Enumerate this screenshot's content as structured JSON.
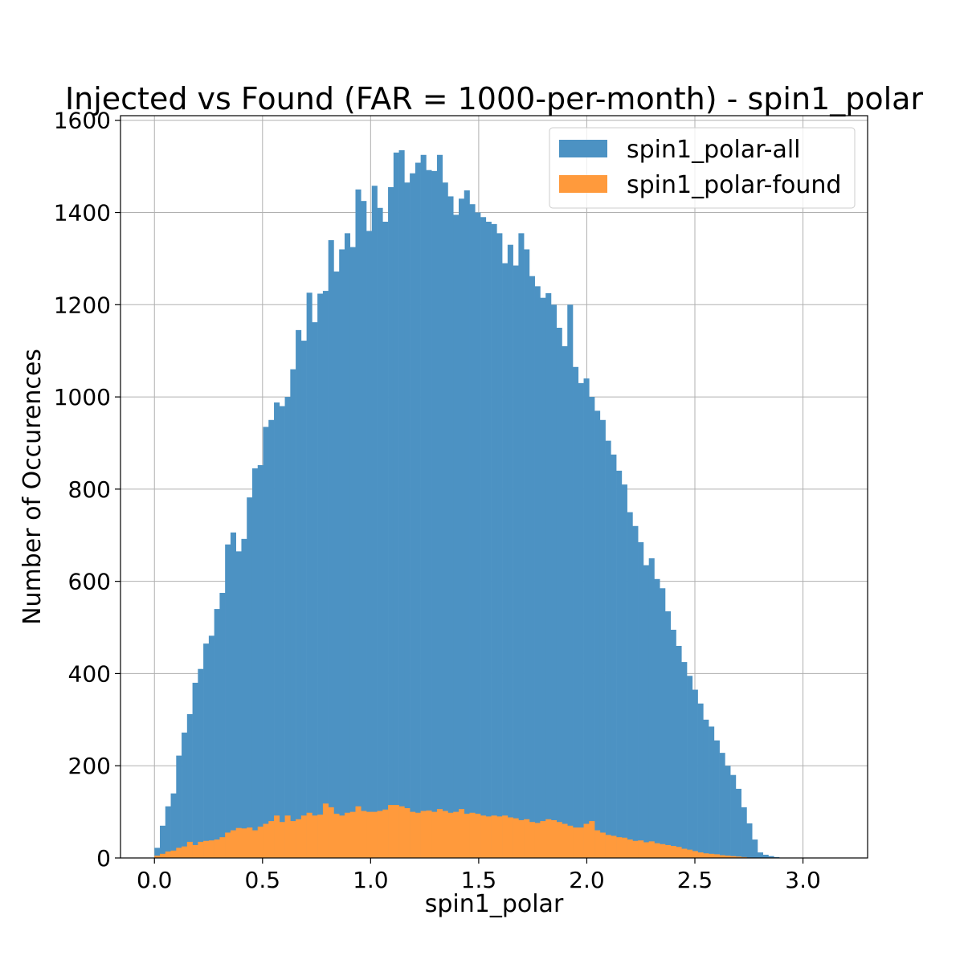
{
  "chart_data": {
    "type": "bar",
    "title": "Injected vs Found (FAR = 1000-per-month) - spin1_polar",
    "xlabel": "spin1_polar",
    "ylabel": "Number of Occurences",
    "xlim": [
      -0.157,
      3.299
    ],
    "ylim": [
      0,
      1610
    ],
    "xticks": [
      0.0,
      0.5,
      1.0,
      1.5,
      2.0,
      2.5,
      3.0
    ],
    "xtick_labels": [
      "0.0",
      "0.5",
      "1.0",
      "1.5",
      "2.0",
      "2.5",
      "3.0"
    ],
    "yticks": [
      0,
      200,
      400,
      600,
      800,
      1000,
      1200,
      1400,
      1600
    ],
    "ytick_labels": [
      "0",
      "200",
      "400",
      "600",
      "800",
      "1000",
      "1200",
      "1400",
      "1600"
    ],
    "grid": true,
    "legend_position": "top-right",
    "bins": {
      "start": 0.0,
      "end": 3.1416,
      "count": 125
    },
    "series": [
      {
        "name": "spin1_polar-all",
        "color": "#4c92c3",
        "values": [
          22,
          70,
          112,
          140,
          222,
          272,
          312,
          380,
          410,
          465,
          482,
          540,
          575,
          680,
          706,
          665,
          692,
          782,
          845,
          852,
          935,
          950,
          988,
          980,
          1000,
          1060,
          1145,
          1122,
          1226,
          1162,
          1224,
          1230,
          1340,
          1272,
          1320,
          1355,
          1325,
          1450,
          1425,
          1360,
          1458,
          1410,
          1380,
          1455,
          1530,
          1535,
          1465,
          1485,
          1508,
          1525,
          1492,
          1490,
          1525,
          1465,
          1435,
          1395,
          1430,
          1448,
          1418,
          1400,
          1390,
          1380,
          1375,
          1355,
          1290,
          1330,
          1285,
          1355,
          1320,
          1262,
          1240,
          1215,
          1225,
          1200,
          1150,
          1110,
          1200,
          1065,
          1030,
          1040,
          1000,
          970,
          950,
          905,
          875,
          840,
          810,
          750,
          720,
          685,
          635,
          650,
          605,
          585,
          535,
          495,
          460,
          425,
          395,
          365,
          335,
          300,
          285,
          255,
          228,
          200,
          180,
          150,
          110,
          75,
          40,
          12,
          7,
          4,
          2,
          0,
          0,
          0,
          0,
          0,
          0,
          0,
          0,
          0,
          0
        ]
      },
      {
        "name": "spin1_polar-found",
        "color": "#ff9a3c",
        "values": [
          5,
          9,
          14,
          16,
          22,
          25,
          35,
          28,
          35,
          37,
          38,
          40,
          45,
          55,
          60,
          65,
          64,
          66,
          60,
          68,
          74,
          80,
          92,
          78,
          92,
          80,
          84,
          92,
          98,
          92,
          94,
          118,
          110,
          96,
          92,
          98,
          100,
          112,
          102,
          100,
          100,
          102,
          105,
          115,
          115,
          112,
          108,
          100,
          98,
          102,
          103,
          100,
          106,
          102,
          98,
          100,
          106,
          96,
          98,
          96,
          92,
          90,
          92,
          90,
          92,
          88,
          86,
          82,
          84,
          78,
          76,
          80,
          84,
          82,
          78,
          74,
          70,
          66,
          66,
          74,
          80,
          60,
          55,
          50,
          48,
          45,
          44,
          40,
          37,
          38,
          34,
          36,
          32,
          30,
          28,
          26,
          24,
          20,
          18,
          15,
          12,
          10,
          9,
          8,
          6,
          5,
          4,
          3,
          2,
          1,
          0,
          0,
          0,
          0,
          0,
          0,
          0,
          0,
          0,
          0,
          0,
          0,
          0,
          0,
          0
        ]
      }
    ]
  }
}
